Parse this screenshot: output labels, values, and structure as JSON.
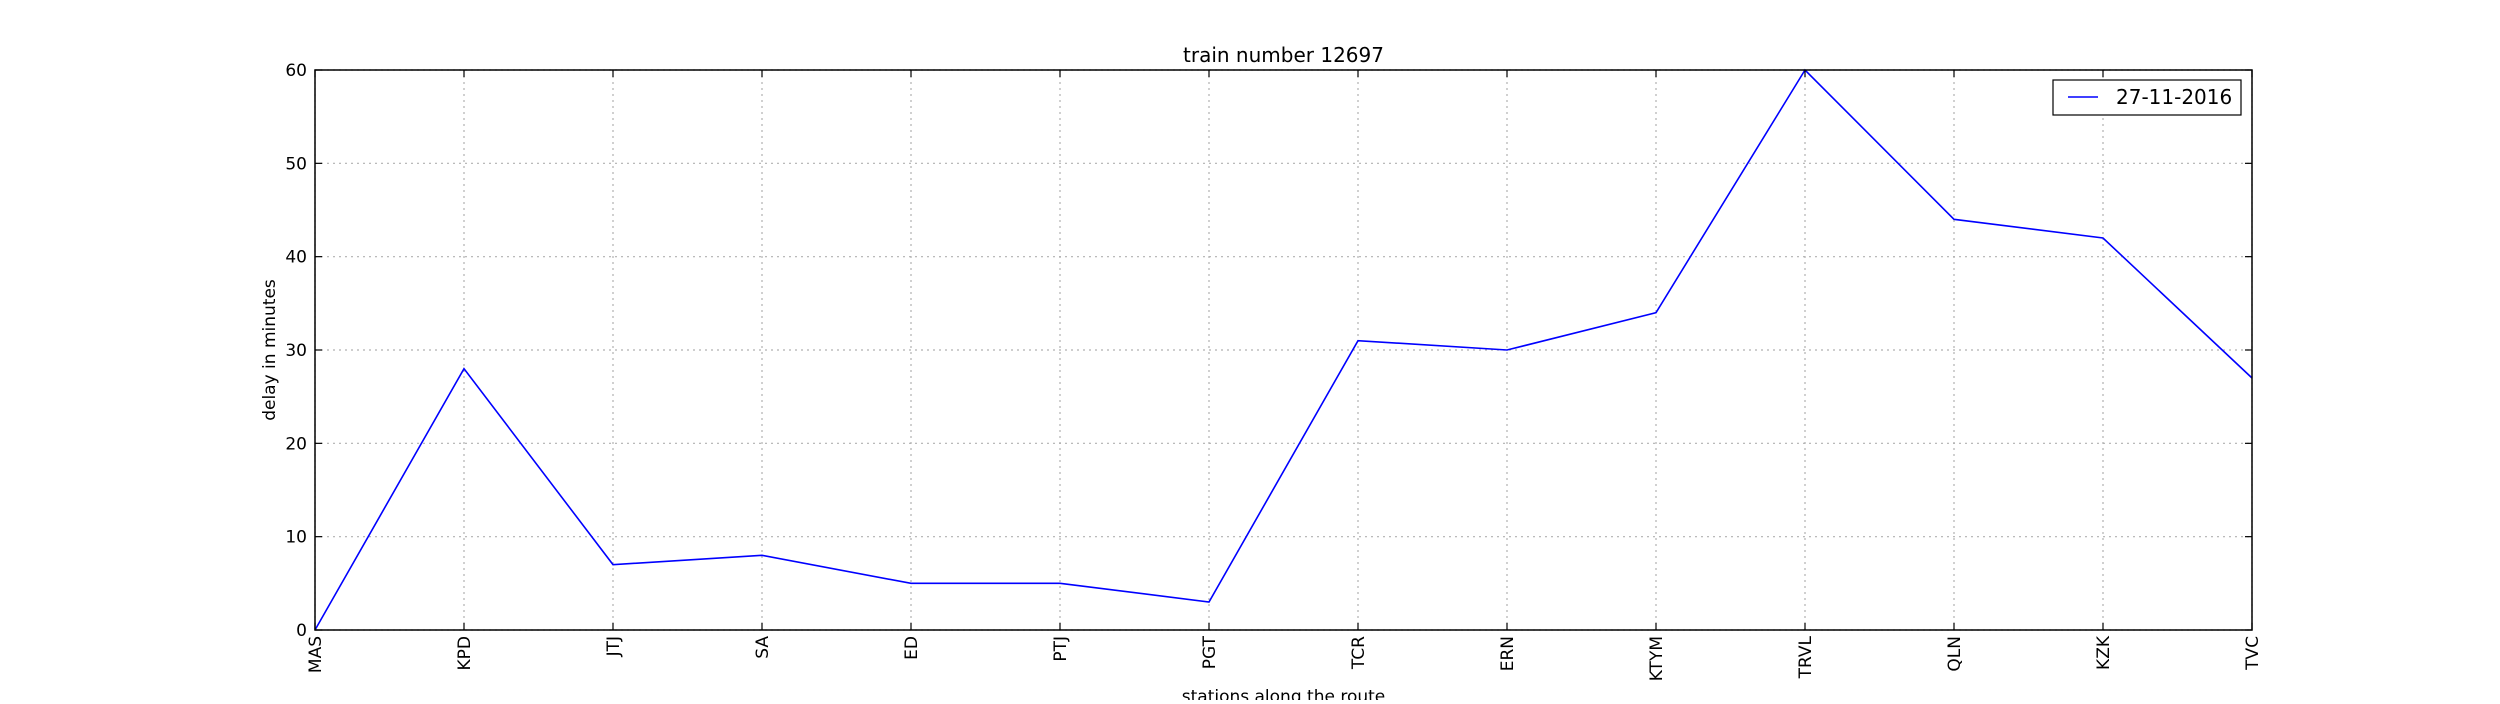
{
  "chart_data": {
    "type": "line",
    "title": "train number 12697",
    "xlabel": "stations along the route",
    "ylabel": "delay in minutes",
    "categories": [
      "MAS",
      "KPD",
      "JTJ",
      "SA",
      "ED",
      "PTJ",
      "PGT",
      "TCR",
      "ERN",
      "KTYM",
      "TRVL",
      "QLN",
      "KZK",
      "TVC"
    ],
    "series": [
      {
        "name": "27-11-2016",
        "color": "#0000ff",
        "values": [
          0,
          28,
          7,
          8,
          5,
          5,
          3,
          31,
          30,
          34,
          60,
          44,
          42,
          27
        ]
      }
    ],
    "ylim": [
      0,
      60
    ],
    "yticks": [
      0,
      10,
      20,
      30,
      40,
      50,
      60
    ],
    "grid": true,
    "legend_position": "top-right"
  }
}
